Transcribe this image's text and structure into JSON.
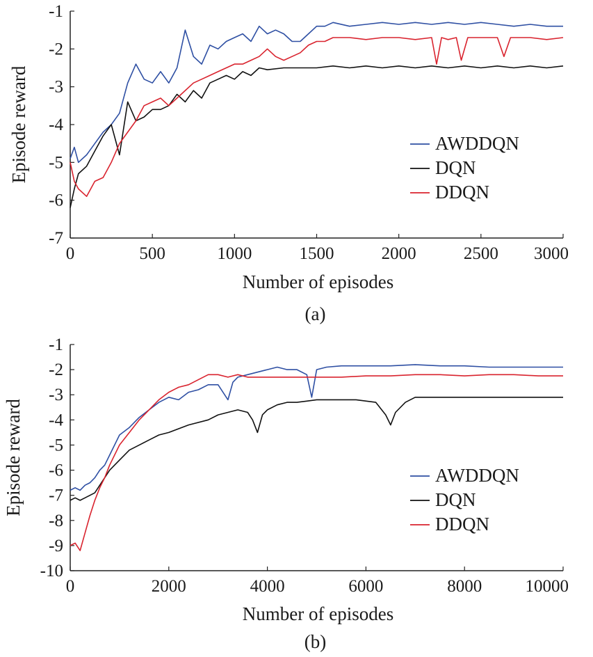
{
  "colors": {
    "AWDDQN": "#2e4fa3",
    "DQN": "#111111",
    "DDQN": "#d9232e",
    "axis": "#222222"
  },
  "chart_data": [
    {
      "type": "line",
      "panel_label": "(a)",
      "xlabel": "Number of episodes",
      "ylabel": "Episode reward",
      "xlim": [
        0,
        3000
      ],
      "ylim": [
        -7,
        -1
      ],
      "x_ticks": [
        "0",
        "500",
        "1000",
        "1500",
        "2000",
        "2500",
        "3000"
      ],
      "y_ticks": [
        "-1",
        "-2",
        "-3",
        "-4",
        "-5",
        "-6",
        "-7"
      ],
      "grid": false,
      "legend_position": "center-right",
      "series": [
        {
          "name": "AWDDQN",
          "color_key": "AWDDQN",
          "x": [
            0,
            25,
            50,
            100,
            150,
            200,
            250,
            300,
            350,
            400,
            450,
            500,
            550,
            600,
            650,
            700,
            750,
            800,
            850,
            900,
            950,
            1000,
            1050,
            1100,
            1150,
            1200,
            1250,
            1300,
            1350,
            1400,
            1450,
            1500,
            1550,
            1600,
            1700,
            1800,
            1900,
            2000,
            2100,
            2200,
            2300,
            2400,
            2500,
            2600,
            2700,
            2800,
            2900,
            3000
          ],
          "y": [
            -4.9,
            -4.6,
            -5.0,
            -4.8,
            -4.5,
            -4.2,
            -4.0,
            -3.7,
            -2.9,
            -2.4,
            -2.8,
            -2.9,
            -2.6,
            -2.9,
            -2.5,
            -1.5,
            -2.2,
            -2.4,
            -1.9,
            -2.0,
            -1.8,
            -1.7,
            -1.6,
            -1.8,
            -1.4,
            -1.6,
            -1.5,
            -1.6,
            -1.8,
            -1.8,
            -1.6,
            -1.4,
            -1.4,
            -1.3,
            -1.4,
            -1.35,
            -1.3,
            -1.35,
            -1.3,
            -1.35,
            -1.3,
            -1.35,
            -1.3,
            -1.35,
            -1.4,
            -1.35,
            -1.4,
            -1.4
          ]
        },
        {
          "name": "DQN",
          "color_key": "DQN",
          "x": [
            0,
            25,
            50,
            100,
            150,
            200,
            250,
            300,
            350,
            400,
            450,
            500,
            550,
            600,
            650,
            700,
            750,
            800,
            850,
            900,
            950,
            1000,
            1050,
            1100,
            1150,
            1200,
            1300,
            1400,
            1500,
            1600,
            1700,
            1800,
            1900,
            2000,
            2100,
            2200,
            2300,
            2400,
            2500,
            2600,
            2700,
            2800,
            2900,
            3000
          ],
          "y": [
            -6.2,
            -5.7,
            -5.3,
            -5.1,
            -4.7,
            -4.3,
            -4.0,
            -4.8,
            -3.4,
            -3.9,
            -3.8,
            -3.6,
            -3.6,
            -3.5,
            -3.2,
            -3.4,
            -3.1,
            -3.3,
            -2.9,
            -2.8,
            -2.7,
            -2.8,
            -2.6,
            -2.7,
            -2.5,
            -2.55,
            -2.5,
            -2.5,
            -2.5,
            -2.45,
            -2.5,
            -2.45,
            -2.5,
            -2.45,
            -2.5,
            -2.45,
            -2.5,
            -2.45,
            -2.5,
            -2.45,
            -2.5,
            -2.45,
            -2.5,
            -2.45
          ]
        },
        {
          "name": "DDQN",
          "color_key": "DDQN",
          "x": [
            0,
            25,
            50,
            100,
            150,
            200,
            250,
            300,
            350,
            400,
            450,
            500,
            550,
            600,
            650,
            700,
            750,
            800,
            850,
            900,
            950,
            1000,
            1050,
            1100,
            1150,
            1200,
            1250,
            1300,
            1350,
            1400,
            1450,
            1500,
            1550,
            1600,
            1700,
            1800,
            1900,
            2000,
            2100,
            2200,
            2230,
            2260,
            2300,
            2350,
            2380,
            2420,
            2500,
            2600,
            2640,
            2680,
            2750,
            2800,
            2900,
            3000
          ],
          "y": [
            -5.0,
            -5.5,
            -5.7,
            -5.9,
            -5.5,
            -5.4,
            -5.0,
            -4.5,
            -4.2,
            -3.9,
            -3.5,
            -3.4,
            -3.3,
            -3.5,
            -3.3,
            -3.1,
            -2.9,
            -2.8,
            -2.7,
            -2.6,
            -2.5,
            -2.4,
            -2.4,
            -2.3,
            -2.2,
            -2.0,
            -2.2,
            -2.3,
            -2.2,
            -2.1,
            -1.9,
            -1.8,
            -1.8,
            -1.7,
            -1.7,
            -1.75,
            -1.7,
            -1.7,
            -1.75,
            -1.7,
            -2.4,
            -1.7,
            -1.75,
            -1.7,
            -2.3,
            -1.7,
            -1.7,
            -1.7,
            -2.2,
            -1.7,
            -1.7,
            -1.7,
            -1.75,
            -1.7
          ]
        }
      ]
    },
    {
      "type": "line",
      "panel_label": "(b)",
      "xlabel": "Number of episodes",
      "ylabel": "Episode reward",
      "xlim": [
        0,
        10000
      ],
      "ylim": [
        -10,
        -1
      ],
      "x_ticks": [
        "0",
        "2000",
        "4000",
        "6000",
        "8000",
        "10000"
      ],
      "y_ticks": [
        "-1",
        "-2",
        "-3",
        "-4",
        "-5",
        "-6",
        "-7",
        "-8",
        "-9",
        "-10"
      ],
      "grid": false,
      "legend_position": "center-right",
      "series": [
        {
          "name": "AWDDQN",
          "color_key": "AWDDQN",
          "x": [
            0,
            100,
            200,
            300,
            400,
            500,
            600,
            700,
            800,
            1000,
            1200,
            1400,
            1600,
            1800,
            2000,
            2200,
            2400,
            2600,
            2800,
            3000,
            3200,
            3300,
            3400,
            3600,
            3800,
            4000,
            4200,
            4400,
            4600,
            4800,
            4900,
            5000,
            5200,
            5500,
            6000,
            6500,
            7000,
            7500,
            8000,
            8500,
            9000,
            9500,
            10000
          ],
          "y": [
            -6.8,
            -6.7,
            -6.8,
            -6.6,
            -6.5,
            -6.3,
            -6.0,
            -5.8,
            -5.4,
            -4.6,
            -4.3,
            -3.9,
            -3.6,
            -3.3,
            -3.1,
            -3.2,
            -2.9,
            -2.8,
            -2.6,
            -2.6,
            -3.2,
            -2.5,
            -2.3,
            -2.2,
            -2.1,
            -2.0,
            -1.9,
            -2.0,
            -2.0,
            -2.2,
            -3.1,
            -2.0,
            -1.9,
            -1.85,
            -1.85,
            -1.85,
            -1.8,
            -1.85,
            -1.85,
            -1.9,
            -1.9,
            -1.9,
            -1.9
          ]
        },
        {
          "name": "DQN",
          "color_key": "DQN",
          "x": [
            0,
            100,
            200,
            300,
            400,
            500,
            600,
            700,
            800,
            1000,
            1200,
            1400,
            1600,
            1800,
            2000,
            2400,
            2800,
            3000,
            3200,
            3400,
            3600,
            3700,
            3800,
            3900,
            4000,
            4200,
            4400,
            4600,
            4800,
            5000,
            5400,
            5800,
            6200,
            6400,
            6500,
            6600,
            6800,
            7000,
            7500,
            8000,
            8500,
            9000,
            9500,
            10000
          ],
          "y": [
            -7.2,
            -7.1,
            -7.2,
            -7.1,
            -7.0,
            -6.9,
            -6.6,
            -6.3,
            -6.0,
            -5.6,
            -5.2,
            -5.0,
            -4.8,
            -4.6,
            -4.5,
            -4.2,
            -4.0,
            -3.8,
            -3.7,
            -3.6,
            -3.7,
            -4.0,
            -4.5,
            -3.8,
            -3.6,
            -3.4,
            -3.3,
            -3.3,
            -3.25,
            -3.2,
            -3.2,
            -3.2,
            -3.3,
            -3.8,
            -4.2,
            -3.7,
            -3.3,
            -3.1,
            -3.1,
            -3.1,
            -3.1,
            -3.1,
            -3.1,
            -3.1
          ]
        },
        {
          "name": "DDQN",
          "color_key": "DDQN",
          "x": [
            0,
            100,
            200,
            300,
            400,
            500,
            600,
            700,
            800,
            1000,
            1200,
            1400,
            1600,
            1800,
            2000,
            2200,
            2400,
            2600,
            2800,
            3000,
            3200,
            3400,
            3600,
            4000,
            4500,
            5000,
            5500,
            6000,
            6500,
            7000,
            7500,
            8000,
            8500,
            9000,
            9500,
            10000
          ],
          "y": [
            -9.0,
            -8.9,
            -9.2,
            -8.5,
            -7.8,
            -7.2,
            -6.7,
            -6.3,
            -5.8,
            -5.0,
            -4.5,
            -4.0,
            -3.6,
            -3.2,
            -2.9,
            -2.7,
            -2.6,
            -2.4,
            -2.2,
            -2.2,
            -2.3,
            -2.2,
            -2.3,
            -2.3,
            -2.3,
            -2.3,
            -2.3,
            -2.25,
            -2.25,
            -2.2,
            -2.2,
            -2.25,
            -2.2,
            -2.2,
            -2.25,
            -2.25
          ]
        }
      ]
    }
  ]
}
